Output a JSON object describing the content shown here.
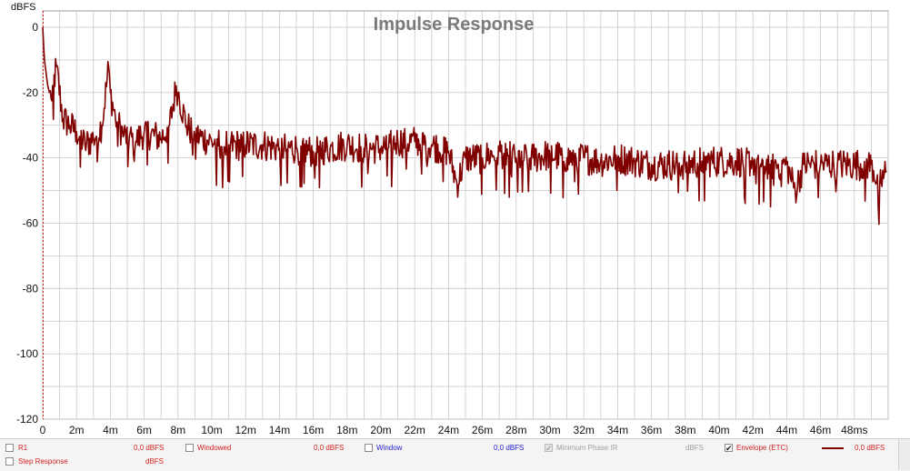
{
  "chart_data": {
    "type": "line",
    "title": "Impulse Response",
    "ylabel": "dBFS",
    "xlabel": "",
    "xlim": [
      0,
      50
    ],
    "ylim": [
      -120,
      5
    ],
    "x_ticks": [
      0,
      2,
      4,
      6,
      8,
      10,
      12,
      14,
      16,
      18,
      20,
      22,
      24,
      26,
      28,
      30,
      32,
      34,
      36,
      38,
      40,
      42,
      44,
      46,
      48
    ],
    "x_tick_labels": [
      "0",
      "2m",
      "4m",
      "6m",
      "8m",
      "10m",
      "12m",
      "14m",
      "16m",
      "18m",
      "20m",
      "22m",
      "24m",
      "26m",
      "28m",
      "30m",
      "32m",
      "34m",
      "36m",
      "38m",
      "40m",
      "42m",
      "44m",
      "46m",
      "48ms"
    ],
    "y_ticks": [
      0,
      -20,
      -40,
      -60,
      -80,
      -100,
      -120
    ],
    "y_tick_labels": [
      "0",
      "-20",
      "-40",
      "-60",
      "-80",
      "-100",
      "-120"
    ],
    "grid": true,
    "series": [
      {
        "name": "Envelope (ETC)",
        "color": "#800000",
        "x": [
          0,
          0.1,
          0.3,
          0.5,
          0.8,
          1.2,
          1.6,
          2.0,
          2.5,
          3.0,
          3.5,
          3.9,
          4.0,
          4.3,
          4.8,
          5.5,
          6.0,
          7.0,
          7.5,
          7.9,
          8.0,
          8.5,
          9.0,
          10.0,
          11.0,
          12.0,
          13.0,
          14.0,
          15.0,
          16.0,
          17.0,
          18.0,
          19.0,
          20.0,
          21.0,
          22.0,
          23.0,
          24.0,
          24.5,
          25.0,
          26.0,
          27.0,
          28.0,
          29.0,
          30.0,
          31.0,
          32.0,
          33.0,
          34.0,
          35.0,
          36.0,
          37.0,
          38.0,
          39.0,
          40.0,
          41.0,
          42.0,
          43.0,
          44.0,
          44.5,
          45.0,
          46.0,
          47.0,
          48.0,
          49.0,
          49.5,
          49.9
        ],
        "y": [
          0,
          -10,
          -18,
          -22,
          -12,
          -28,
          -30,
          -32,
          -36,
          -34,
          -30,
          -12,
          -20,
          -28,
          -33,
          -35,
          -32,
          -34,
          -30,
          -18,
          -20,
          -30,
          -33,
          -35,
          -36,
          -36,
          -36,
          -37,
          -37,
          -38,
          -37,
          -36,
          -37,
          -37,
          -35,
          -35,
          -36,
          -38,
          -48,
          -40,
          -40,
          -38,
          -40,
          -40,
          -39,
          -40,
          -40,
          -41,
          -40,
          -41,
          -42,
          -42,
          -42,
          -41,
          -41,
          -41,
          -41,
          -42,
          -42,
          -50,
          -42,
          -42,
          -42,
          -42,
          -42,
          -48,
          -44
        ]
      }
    ]
  },
  "legend": [
    {
      "label": "R1",
      "value": "0,0 dBFS",
      "color": "#d42020",
      "checked": false,
      "enabled": true
    },
    {
      "label": "Windowed",
      "value": "0,0 dBFS",
      "color": "#d42020",
      "checked": false,
      "enabled": true
    },
    {
      "label": "Window",
      "value": "0,0 dBFS",
      "color": "#2020cc",
      "checked": false,
      "enabled": true
    },
    {
      "label": "Minimum Phase IR",
      "value": "dBFS",
      "color": "#a0a0a0",
      "checked": true,
      "enabled": false
    },
    {
      "label": "Envelope (ETC)",
      "value": "0,0 dBFS",
      "color": "#d42020",
      "checked": true,
      "enabled": true
    },
    {
      "label": "Step Response",
      "value": "dBFS",
      "color": "#d42020",
      "checked": false,
      "enabled": true
    }
  ],
  "colors": {
    "trace": "#800000",
    "grid": "#c8c8c8",
    "plot_border": "#9a9a9a",
    "title": "#7a7a7a",
    "cursor": "#d42020"
  }
}
